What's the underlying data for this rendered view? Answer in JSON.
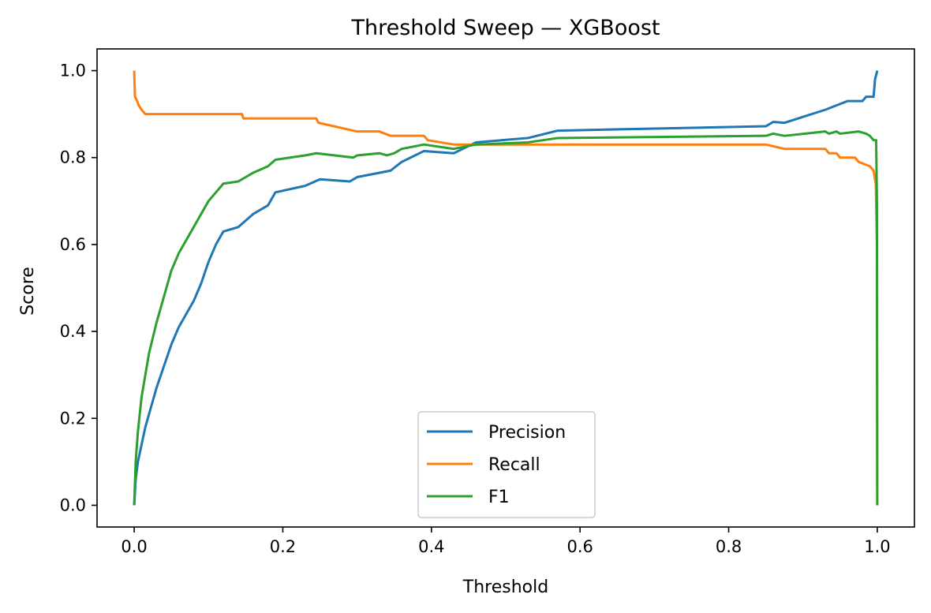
{
  "chart_data": {
    "type": "line",
    "title": "Threshold Sweep — XGBoost",
    "xlabel": "Threshold",
    "ylabel": "Score",
    "xlim": [
      -0.05,
      1.05
    ],
    "ylim": [
      -0.05,
      1.05
    ],
    "xticks": [
      0.0,
      0.2,
      0.4,
      0.6,
      0.8,
      1.0
    ],
    "xtick_labels": [
      "0.0",
      "0.2",
      "0.4",
      "0.6",
      "0.8",
      "1.0"
    ],
    "yticks": [
      0.0,
      0.2,
      0.4,
      0.6,
      0.8,
      1.0
    ],
    "ytick_labels": [
      "0.0",
      "0.2",
      "0.4",
      "0.6",
      "0.8",
      "1.0"
    ],
    "grid": false,
    "legend_position": "lower-center",
    "series": [
      {
        "name": "Precision",
        "color": "#1f77b4",
        "points": [
          [
            0.0,
            0.0
          ],
          [
            0.002,
            0.06
          ],
          [
            0.005,
            0.1
          ],
          [
            0.01,
            0.14
          ],
          [
            0.015,
            0.18
          ],
          [
            0.02,
            0.21
          ],
          [
            0.03,
            0.27
          ],
          [
            0.04,
            0.32
          ],
          [
            0.05,
            0.37
          ],
          [
            0.06,
            0.41
          ],
          [
            0.07,
            0.44
          ],
          [
            0.08,
            0.47
          ],
          [
            0.09,
            0.51
          ],
          [
            0.1,
            0.56
          ],
          [
            0.11,
            0.6
          ],
          [
            0.12,
            0.63
          ],
          [
            0.14,
            0.64
          ],
          [
            0.16,
            0.67
          ],
          [
            0.18,
            0.69
          ],
          [
            0.19,
            0.72
          ],
          [
            0.23,
            0.735
          ],
          [
            0.25,
            0.75
          ],
          [
            0.29,
            0.745
          ],
          [
            0.3,
            0.755
          ],
          [
            0.33,
            0.765
          ],
          [
            0.345,
            0.77
          ],
          [
            0.36,
            0.79
          ],
          [
            0.39,
            0.815
          ],
          [
            0.43,
            0.81
          ],
          [
            0.46,
            0.835
          ],
          [
            0.53,
            0.845
          ],
          [
            0.57,
            0.862
          ],
          [
            0.85,
            0.872
          ],
          [
            0.86,
            0.882
          ],
          [
            0.875,
            0.88
          ],
          [
            0.93,
            0.91
          ],
          [
            0.96,
            0.93
          ],
          [
            0.98,
            0.93
          ],
          [
            0.985,
            0.94
          ],
          [
            0.995,
            0.94
          ],
          [
            0.997,
            0.98
          ],
          [
            1.0,
            1.0
          ]
        ]
      },
      {
        "name": "Recall",
        "color": "#ff7f0e",
        "points": [
          [
            0.0,
            1.0
          ],
          [
            0.001,
            0.94
          ],
          [
            0.004,
            0.93
          ],
          [
            0.006,
            0.92
          ],
          [
            0.01,
            0.91
          ],
          [
            0.015,
            0.9
          ],
          [
            0.145,
            0.9
          ],
          [
            0.147,
            0.89
          ],
          [
            0.245,
            0.89
          ],
          [
            0.248,
            0.88
          ],
          [
            0.3,
            0.86
          ],
          [
            0.33,
            0.86
          ],
          [
            0.345,
            0.85
          ],
          [
            0.39,
            0.85
          ],
          [
            0.395,
            0.84
          ],
          [
            0.43,
            0.83
          ],
          [
            0.85,
            0.83
          ],
          [
            0.875,
            0.82
          ],
          [
            0.93,
            0.82
          ],
          [
            0.935,
            0.81
          ],
          [
            0.945,
            0.81
          ],
          [
            0.95,
            0.8
          ],
          [
            0.97,
            0.8
          ],
          [
            0.975,
            0.79
          ],
          [
            0.99,
            0.78
          ],
          [
            0.995,
            0.77
          ],
          [
            0.998,
            0.74
          ],
          [
            0.9995,
            0.6
          ],
          [
            1.0,
            0.0
          ]
        ]
      },
      {
        "name": "F1",
        "color": "#2ca02c",
        "points": [
          [
            0.0,
            0.0
          ],
          [
            0.002,
            0.1
          ],
          [
            0.005,
            0.17
          ],
          [
            0.01,
            0.25
          ],
          [
            0.015,
            0.3
          ],
          [
            0.02,
            0.35
          ],
          [
            0.03,
            0.42
          ],
          [
            0.04,
            0.48
          ],
          [
            0.05,
            0.54
          ],
          [
            0.06,
            0.58
          ],
          [
            0.07,
            0.61
          ],
          [
            0.08,
            0.64
          ],
          [
            0.09,
            0.67
          ],
          [
            0.1,
            0.7
          ],
          [
            0.11,
            0.72
          ],
          [
            0.12,
            0.74
          ],
          [
            0.14,
            0.745
          ],
          [
            0.16,
            0.765
          ],
          [
            0.18,
            0.78
          ],
          [
            0.19,
            0.795
          ],
          [
            0.23,
            0.805
          ],
          [
            0.245,
            0.81
          ],
          [
            0.295,
            0.8
          ],
          [
            0.3,
            0.805
          ],
          [
            0.33,
            0.81
          ],
          [
            0.34,
            0.805
          ],
          [
            0.35,
            0.81
          ],
          [
            0.36,
            0.82
          ],
          [
            0.39,
            0.83
          ],
          [
            0.43,
            0.82
          ],
          [
            0.46,
            0.83
          ],
          [
            0.53,
            0.835
          ],
          [
            0.57,
            0.845
          ],
          [
            0.85,
            0.85
          ],
          [
            0.86,
            0.855
          ],
          [
            0.875,
            0.85
          ],
          [
            0.93,
            0.86
          ],
          [
            0.935,
            0.855
          ],
          [
            0.945,
            0.86
          ],
          [
            0.95,
            0.855
          ],
          [
            0.975,
            0.86
          ],
          [
            0.985,
            0.855
          ],
          [
            0.99,
            0.85
          ],
          [
            0.995,
            0.84
          ],
          [
            0.9985,
            0.84
          ],
          [
            0.9995,
            0.7
          ],
          [
            1.0,
            0.0
          ]
        ]
      }
    ]
  }
}
